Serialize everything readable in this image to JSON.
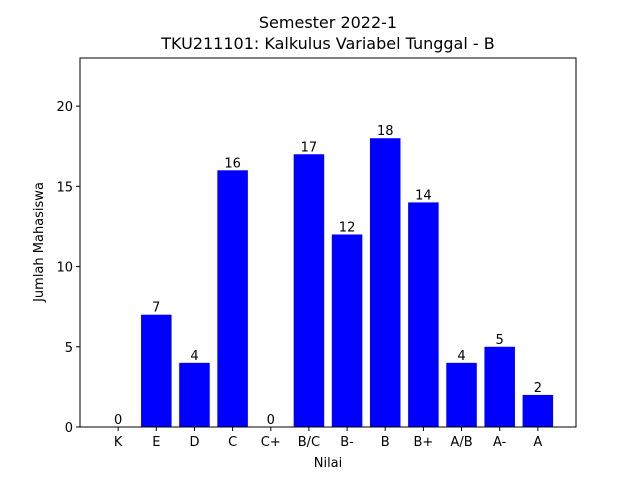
{
  "chart_data": {
    "type": "bar",
    "title_line1": "Semester 2022-1",
    "title_line2": "TKU211101: Kalkulus Variabel Tunggal - B",
    "xlabel": "Nilai",
    "ylabel": "Jumlah Mahasiswa",
    "categories": [
      "K",
      "E",
      "D",
      "C",
      "C+",
      "B/C",
      "B-",
      "B",
      "B+",
      "A/B",
      "A-",
      "A"
    ],
    "values": [
      0,
      7,
      4,
      16,
      0,
      17,
      12,
      18,
      14,
      4,
      5,
      2
    ],
    "ylim": [
      0,
      23
    ],
    "yticks": [
      0,
      5,
      10,
      15,
      20
    ],
    "bar_color": "#0000ff",
    "grid": false,
    "legend": false
  }
}
